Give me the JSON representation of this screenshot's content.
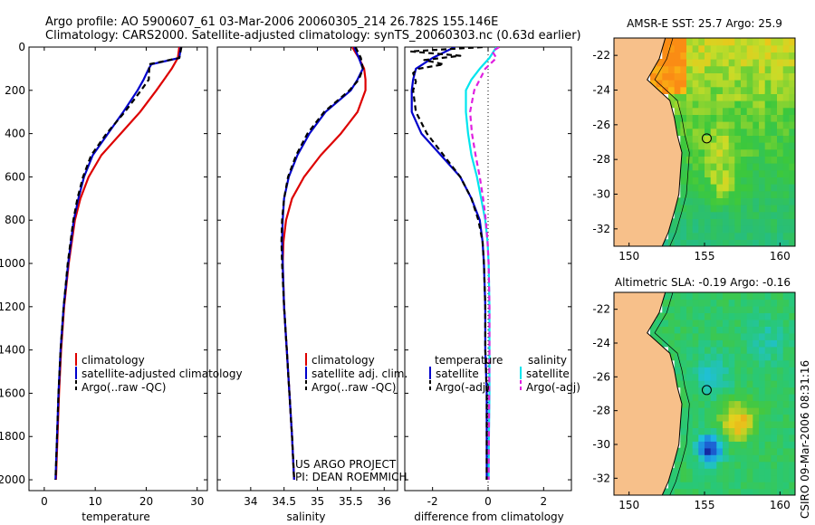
{
  "header": {
    "title_line1": "Argo profile: AO 5900607_61 03-Mar-2006 20060305_214 26.782S 155.146E",
    "title_line2": "Climatology: CARS2000. Satellite-adjusted climatology: synTS_20060303.nc (0.63d earlier)"
  },
  "colors": {
    "climatology": "#dd0000",
    "satellite": "#0000cc",
    "argo": "#000000",
    "satellite_sal": "#00e5ee",
    "argo_sal_adj": "#e020e0",
    "land": "#f7c08a"
  },
  "credits": {
    "project": "US ARGO PROJECT",
    "pi": "PI: DEAN ROEMMICH",
    "side_stamp": "CSIRO 09-Mar-2006 08:31:16"
  },
  "depth_ticks": [
    "0",
    "200",
    "400",
    "600",
    "800",
    "1000",
    "1200",
    "1400",
    "1600",
    "1800",
    "2000"
  ],
  "chart_data": [
    {
      "type": "line",
      "title": "",
      "xlabel": "temperature",
      "ylabel": "",
      "xlim": [
        -3,
        32
      ],
      "ylim": [
        2050,
        0
      ],
      "x_ticks": [
        "0",
        "10",
        "20",
        "30"
      ],
      "legend": [
        "climatology",
        "satellite-adjusted climatology",
        "Argo(..raw -QC)"
      ],
      "series": [
        {
          "name": "climatology",
          "depth": [
            0,
            50,
            100,
            150,
            200,
            300,
            400,
            500,
            600,
            700,
            800,
            1000,
            1200,
            1400,
            1600,
            1800,
            2000
          ],
          "values": [
            26.5,
            26.2,
            25,
            23.5,
            22,
            18.8,
            15,
            11.2,
            8.7,
            7.1,
            6.0,
            4.8,
            3.9,
            3.3,
            2.9,
            2.6,
            2.3
          ]
        },
        {
          "name": "satellite-adjusted climatology",
          "depth": [
            0,
            50,
            80,
            100,
            150,
            200,
            300,
            400,
            500,
            600,
            700,
            800,
            1000,
            1200,
            1400,
            1600,
            1800,
            2000
          ],
          "values": [
            26.8,
            26.5,
            21,
            20.5,
            19.5,
            18.3,
            15.5,
            12.5,
            9.5,
            7.8,
            6.7,
            5.8,
            4.7,
            3.8,
            3.2,
            2.8,
            2.5,
            2.2
          ]
        },
        {
          "name": "Argo(..raw -QC)",
          "depth": [
            0,
            50,
            80,
            100,
            150,
            200,
            300,
            400,
            500,
            600,
            700,
            800,
            1000,
            1200,
            1400,
            1600,
            1800,
            2000
          ],
          "values": [
            26.9,
            26.5,
            20.5,
            20.6,
            20.5,
            19.0,
            15.8,
            12.2,
            9.2,
            7.6,
            6.5,
            5.7,
            4.6,
            3.8,
            3.2,
            2.8,
            2.5,
            2.2
          ]
        }
      ]
    },
    {
      "type": "line",
      "title": "",
      "xlabel": "salinity",
      "ylabel": "",
      "xlim": [
        33.5,
        36.2
      ],
      "ylim": [
        2050,
        0
      ],
      "x_ticks": [
        "34",
        "34.5",
        "35",
        "35.5",
        "36"
      ],
      "legend": [
        "climatology",
        "satellite adj. clim.",
        "Argo(..raw -QC)"
      ],
      "series": [
        {
          "name": "climatology",
          "depth": [
            0,
            50,
            100,
            150,
            200,
            300,
            400,
            500,
            600,
            700,
            800,
            900,
            1000,
            1200,
            1400,
            1600,
            1800,
            2000
          ],
          "values": [
            35.52,
            35.62,
            35.7,
            35.72,
            35.72,
            35.6,
            35.35,
            35.05,
            34.8,
            34.62,
            34.53,
            34.49,
            34.48,
            34.5,
            34.54,
            34.58,
            34.62,
            34.65
          ]
        },
        {
          "name": "satellite adj. clim.",
          "depth": [
            0,
            50,
            100,
            150,
            200,
            300,
            400,
            500,
            600,
            700,
            800,
            900,
            1000,
            1200,
            1400,
            1600,
            1800,
            2000
          ],
          "values": [
            35.55,
            35.62,
            35.68,
            35.6,
            35.5,
            35.12,
            34.88,
            34.7,
            34.57,
            34.5,
            34.48,
            34.47,
            34.48,
            34.5,
            34.54,
            34.58,
            34.62,
            34.65
          ]
        },
        {
          "name": "Argo(..raw -QC)",
          "depth": [
            0,
            50,
            100,
            150,
            200,
            300,
            400,
            500,
            600,
            700,
            800,
            900,
            1000,
            1200,
            1400,
            1600,
            1800,
            2000
          ],
          "values": [
            35.57,
            35.65,
            35.68,
            35.62,
            35.48,
            35.1,
            34.85,
            34.68,
            34.56,
            34.5,
            34.47,
            34.46,
            34.47,
            34.5,
            34.54,
            34.58,
            34.62,
            34.65
          ]
        }
      ]
    },
    {
      "type": "line",
      "title": "",
      "xlabel": "difference from climatology",
      "ylabel": "",
      "xlim": [
        -3,
        3
      ],
      "ylim": [
        2050,
        0
      ],
      "x_ticks": [
        "-2",
        "0",
        "2"
      ],
      "legend_headers": [
        "temperature",
        "salinity"
      ],
      "legend": [
        "satellite",
        "Argo(-adj)",
        "satellite",
        "Argo(-adj)"
      ],
      "series": [
        {
          "name": "temperature satellite",
          "depth": [
            0,
            50,
            100,
            150,
            200,
            300,
            400,
            500,
            600,
            700,
            800,
            900,
            1000,
            1200,
            1400,
            1600,
            1800,
            2000
          ],
          "values": [
            -1.2,
            -2.0,
            -2.6,
            -2.7,
            -2.75,
            -2.75,
            -2.4,
            -1.7,
            -1.0,
            -0.6,
            -0.3,
            -0.2,
            -0.15,
            -0.1,
            -0.1,
            -0.05,
            -0.05,
            -0.05
          ]
        },
        {
          "name": "temperature Argo(-adj)",
          "depth": [
            0,
            20,
            40,
            60,
            80,
            100,
            120,
            160,
            200,
            300,
            400,
            500,
            600,
            700,
            800,
            900,
            1000,
            1200,
            1400,
            1600,
            1800,
            2000
          ],
          "values": [
            -0.2,
            -2.8,
            -1.0,
            -2.3,
            -1.6,
            -2.5,
            -2.7,
            -2.6,
            -2.7,
            -2.6,
            -2.2,
            -1.6,
            -1.0,
            -0.6,
            -0.35,
            -0.2,
            -0.15,
            -0.1,
            -0.1,
            -0.05,
            -0.05,
            -0.05
          ]
        },
        {
          "name": "salinity satellite",
          "depth": [
            0,
            50,
            100,
            150,
            200,
            300,
            400,
            500,
            600,
            700,
            800,
            900,
            1000,
            1200,
            1400,
            1600,
            1800,
            2000
          ],
          "values": [
            0.3,
            0.05,
            -0.3,
            -0.6,
            -0.8,
            -0.8,
            -0.72,
            -0.6,
            -0.4,
            -0.25,
            -0.1,
            -0.02,
            0.02,
            0.05,
            0.05,
            0.05,
            0.03,
            0.02
          ]
        },
        {
          "name": "salinity Argo(-adj)",
          "depth": [
            0,
            20,
            50,
            100,
            150,
            200,
            300,
            400,
            500,
            600,
            700,
            800,
            900,
            1000,
            1200,
            1400,
            1600,
            1800,
            2000
          ],
          "values": [
            0.4,
            0.15,
            0.3,
            -0.1,
            -0.3,
            -0.5,
            -0.65,
            -0.58,
            -0.45,
            -0.3,
            -0.18,
            -0.08,
            -0.02,
            0.02,
            0.05,
            0.05,
            0.04,
            0.03,
            0.02
          ]
        }
      ]
    },
    {
      "type": "heatmap",
      "title": "AMSR-E SST: 25.7 Argo: 25.9",
      "xlabel": "",
      "ylabel": "",
      "xlim": [
        149,
        161
      ],
      "ylim": [
        -33,
        -21
      ],
      "x_ticks": [
        "150",
        "155",
        "160"
      ],
      "y_ticks": [
        "-22",
        "-24",
        "-26",
        "-28",
        "-30",
        "-32"
      ],
      "argo_position": [
        155.146,
        -26.782
      ]
    },
    {
      "type": "heatmap",
      "title": "Altimetric SLA: -0.19 Argo: -0.16",
      "xlabel": "",
      "ylabel": "",
      "xlim": [
        149,
        161
      ],
      "ylim": [
        -33,
        -21
      ],
      "x_ticks": [
        "150",
        "155",
        "160"
      ],
      "y_ticks": [
        "-22",
        "-24",
        "-26",
        "-28",
        "-30",
        "-32"
      ],
      "argo_position": [
        155.146,
        -26.782
      ]
    }
  ]
}
